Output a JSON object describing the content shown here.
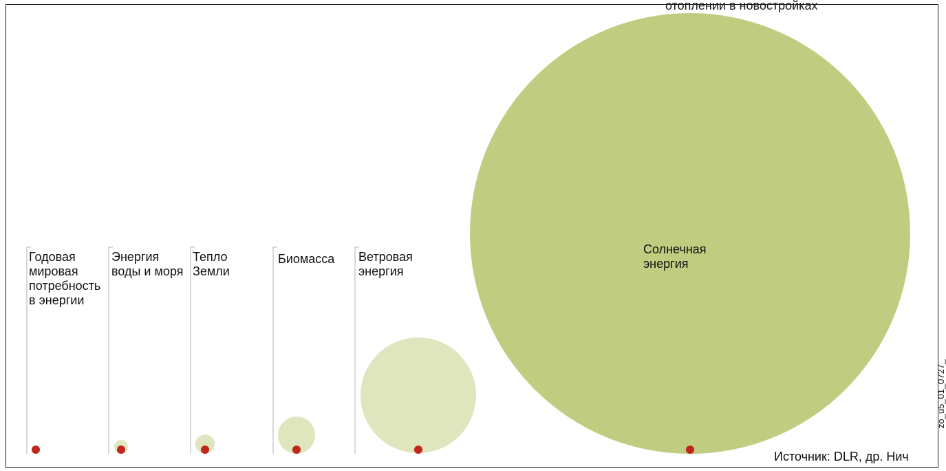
{
  "header": {
    "partial_text": "отоплении в новостройках"
  },
  "colors": {
    "small_circle_fill": "#dfe6be",
    "solar_circle_fill": "#c0cd81",
    "marker_dot": "#c0261b",
    "bracket_line": "#b0b0b0",
    "frame": "#1a1a1a"
  },
  "items": [
    {
      "id": "demand",
      "label_lines": [
        "Годовая",
        "мировая",
        "потребность",
        "в энергии"
      ]
    },
    {
      "id": "water",
      "label_lines": [
        "Энергия",
        "воды и моря"
      ]
    },
    {
      "id": "geothermal",
      "label_lines": [
        "Тепло",
        "Земли"
      ]
    },
    {
      "id": "biomass",
      "label_lines": [
        "Биомасса"
      ]
    },
    {
      "id": "wind",
      "label_lines": [
        "Ветровая",
        "энергия"
      ]
    },
    {
      "id": "solar",
      "label_lines": [
        "Солнечная",
        "энергия"
      ]
    }
  ],
  "footer": {
    "source": "Источник: DLR, др. Нич",
    "code": "zo_u5_01_0727_"
  }
}
